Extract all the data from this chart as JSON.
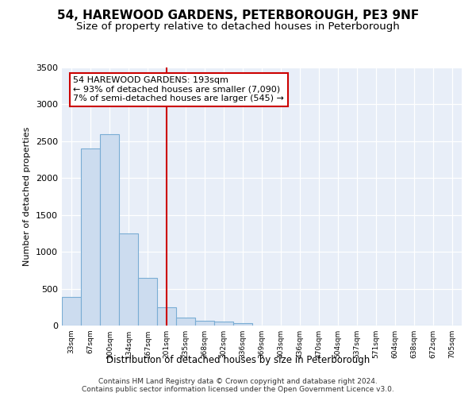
{
  "title": "54, HAREWOOD GARDENS, PETERBOROUGH, PE3 9NF",
  "subtitle": "Size of property relative to detached houses in Peterborough",
  "xlabel": "Distribution of detached houses by size in Peterborough",
  "ylabel": "Number of detached properties",
  "categories": [
    "33sqm",
    "67sqm",
    "100sqm",
    "134sqm",
    "167sqm",
    "201sqm",
    "235sqm",
    "268sqm",
    "302sqm",
    "336sqm",
    "369sqm",
    "403sqm",
    "436sqm",
    "470sqm",
    "504sqm",
    "537sqm",
    "571sqm",
    "604sqm",
    "638sqm",
    "672sqm",
    "705sqm"
  ],
  "values": [
    390,
    2400,
    2600,
    1250,
    650,
    250,
    110,
    65,
    55,
    35,
    0,
    0,
    0,
    0,
    0,
    0,
    0,
    0,
    0,
    0,
    0
  ],
  "bar_color": "#ccdcef",
  "bar_edge_color": "#7aadd4",
  "vline_x": 5,
  "vline_color": "#cc0000",
  "annotation_text": "54 HAREWOOD GARDENS: 193sqm\n← 93% of detached houses are smaller (7,090)\n7% of semi-detached houses are larger (545) →",
  "annotation_box_color": "white",
  "annotation_box_edge": "#cc0000",
  "ylim": [
    0,
    3500
  ],
  "yticks": [
    0,
    500,
    1000,
    1500,
    2000,
    2500,
    3000,
    3500
  ],
  "footer": "Contains HM Land Registry data © Crown copyright and database right 2024.\nContains public sector information licensed under the Open Government Licence v3.0.",
  "background_color": "#e8eef8",
  "grid_color": "white",
  "title_fontsize": 11,
  "subtitle_fontsize": 9.5,
  "xlabel_fontsize": 8.5,
  "ylabel_fontsize": 8,
  "annotation_fontsize": 8,
  "footer_fontsize": 6.5
}
